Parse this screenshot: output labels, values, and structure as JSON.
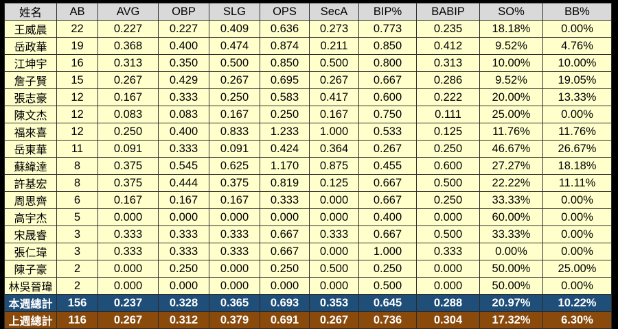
{
  "headers": [
    "姓名",
    "AB",
    "AVG",
    "OBP",
    "SLG",
    "OPS",
    "SecA",
    "BIP%",
    "BABIP",
    "SO%",
    "BB%"
  ],
  "rows": [
    [
      "王威晨",
      "22",
      "0.227",
      "0.227",
      "0.409",
      "0.636",
      "0.273",
      "0.773",
      "0.235",
      "18.18%",
      "0.00%"
    ],
    [
      "岳政華",
      "19",
      "0.368",
      "0.400",
      "0.474",
      "0.874",
      "0.211",
      "0.850",
      "0.412",
      "9.52%",
      "4.76%"
    ],
    [
      "江坤宇",
      "16",
      "0.313",
      "0.350",
      "0.500",
      "0.850",
      "0.500",
      "0.800",
      "0.313",
      "10.00%",
      "10.00%"
    ],
    [
      "詹子賢",
      "15",
      "0.267",
      "0.429",
      "0.267",
      "0.695",
      "0.267",
      "0.667",
      "0.286",
      "9.52%",
      "19.05%"
    ],
    [
      "張志豪",
      "12",
      "0.167",
      "0.333",
      "0.250",
      "0.583",
      "0.417",
      "0.600",
      "0.222",
      "20.00%",
      "13.33%"
    ],
    [
      "陳文杰",
      "12",
      "0.083",
      "0.083",
      "0.167",
      "0.250",
      "0.167",
      "0.750",
      "0.111",
      "25.00%",
      "0.00%"
    ],
    [
      "福來喜",
      "12",
      "0.250",
      "0.400",
      "0.833",
      "1.233",
      "1.000",
      "0.533",
      "0.125",
      "11.76%",
      "11.76%"
    ],
    [
      "岳東華",
      "11",
      "0.091",
      "0.333",
      "0.091",
      "0.424",
      "0.364",
      "0.267",
      "0.250",
      "46.67%",
      "26.67%"
    ],
    [
      "蘇緯達",
      "8",
      "0.375",
      "0.545",
      "0.625",
      "1.170",
      "0.875",
      "0.455",
      "0.600",
      "27.27%",
      "18.18%"
    ],
    [
      "許基宏",
      "8",
      "0.375",
      "0.444",
      "0.375",
      "0.819",
      "0.125",
      "0.667",
      "0.500",
      "22.22%",
      "11.11%"
    ],
    [
      "周思齊",
      "6",
      "0.167",
      "0.167",
      "0.167",
      "0.333",
      "0.000",
      "0.667",
      "0.250",
      "33.33%",
      "0.00%"
    ],
    [
      "高宇杰",
      "5",
      "0.000",
      "0.000",
      "0.000",
      "0.000",
      "0.000",
      "0.400",
      "0.000",
      "60.00%",
      "0.00%"
    ],
    [
      "宋晟睿",
      "3",
      "0.333",
      "0.333",
      "0.333",
      "0.667",
      "0.333",
      "0.667",
      "0.500",
      "33.33%",
      "0.00%"
    ],
    [
      "張仁瑋",
      "3",
      "0.333",
      "0.333",
      "0.333",
      "0.667",
      "0.000",
      "1.000",
      "0.333",
      "0.00%",
      "0.00%"
    ],
    [
      "陳子豪",
      "2",
      "0.000",
      "0.250",
      "0.000",
      "0.250",
      "0.500",
      "0.250",
      "0.000",
      "50.00%",
      "25.00%"
    ],
    [
      "林吳晉瑋",
      "2",
      "0.000",
      "0.000",
      "0.000",
      "0.000",
      "0.000",
      "0.500",
      "0.000",
      "50.00%",
      "0.00%"
    ]
  ],
  "totals": [
    [
      "本週總計",
      "156",
      "0.237",
      "0.328",
      "0.365",
      "0.693",
      "0.353",
      "0.645",
      "0.288",
      "20.97%",
      "10.22%"
    ],
    [
      "上週總計",
      "116",
      "0.267",
      "0.312",
      "0.379",
      "0.691",
      "0.267",
      "0.736",
      "0.304",
      "17.32%",
      "6.30%"
    ]
  ],
  "colors": {
    "header_bg": "#d9d9d9",
    "row_bg": "#ffffcc",
    "this_week_bg": "#1f4e79",
    "last_week_bg": "#8a4a0b"
  }
}
